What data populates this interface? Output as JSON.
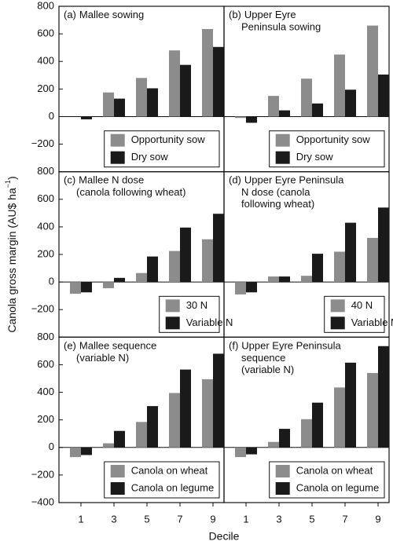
{
  "y_label": [
    "Canola gross margin (AU$ ha",
    "−1",
    ")"
  ],
  "x_label": "Decile",
  "x_categories": [
    "1",
    "3",
    "5",
    "7",
    "9"
  ],
  "chart_data": [
    {
      "type": "bar",
      "panel": "(a)",
      "title": [
        "Mallee sowing"
      ],
      "ylim": [
        -400,
        800
      ],
      "yticks": [
        {
          "value": -200,
          "label": "−200"
        },
        0,
        200,
        400,
        600,
        800
      ],
      "legend": "lower right",
      "series": [
        {
          "name": "Opportunity sow",
          "color": "#8c8c8c",
          "values": [
            0,
            175,
            280,
            480,
            635
          ]
        },
        {
          "name": "Dry sow",
          "color": "#1a1a1a",
          "values": [
            -20,
            130,
            205,
            375,
            505
          ]
        }
      ]
    },
    {
      "type": "bar",
      "panel": "(b)",
      "title": [
        "Upper Eyre",
        "Peninsula sowing"
      ],
      "ylim": [
        -400,
        800
      ],
      "legend": "lower right",
      "series": [
        {
          "name": "Opportunity sow",
          "color": "#8c8c8c",
          "values": [
            -10,
            150,
            275,
            450,
            660
          ]
        },
        {
          "name": "Dry sow",
          "color": "#1a1a1a",
          "values": [
            -45,
            45,
            95,
            195,
            305
          ]
        }
      ]
    },
    {
      "type": "bar",
      "panel": "(c)",
      "title": [
        "Mallee N dose",
        "(canola following wheat)"
      ],
      "ylim": [
        -400,
        800
      ],
      "yticks": [
        {
          "value": -200,
          "label": "−200"
        },
        0,
        200,
        400,
        600,
        800
      ],
      "legend": "lower right",
      "series": [
        {
          "name": "30 N",
          "color": "#8c8c8c",
          "values": [
            -85,
            -45,
            65,
            225,
            310
          ]
        },
        {
          "name": "Variable N",
          "color": "#1a1a1a",
          "values": [
            -75,
            30,
            185,
            395,
            495
          ]
        }
      ]
    },
    {
      "type": "bar",
      "panel": "(d)",
      "title": [
        "Upper Eyre Peninsula",
        "N dose (canola",
        "following wheat)"
      ],
      "ylim": [
        -400,
        800
      ],
      "legend": "lower right",
      "series": [
        {
          "name": "40 N",
          "color": "#8c8c8c",
          "values": [
            -90,
            40,
            45,
            220,
            320
          ]
        },
        {
          "name": "Variable N",
          "color": "#1a1a1a",
          "values": [
            -75,
            40,
            205,
            430,
            540
          ]
        }
      ]
    },
    {
      "type": "bar",
      "panel": "(e)",
      "title": [
        "Mallee sequence",
        "(variable N)"
      ],
      "ylim": [
        -400,
        800
      ],
      "yticks": [
        {
          "value": -400,
          "label": "−400"
        },
        {
          "value": -200,
          "label": "−200"
        },
        0,
        200,
        400,
        600,
        800
      ],
      "legend": "lower right",
      "series": [
        {
          "name": "Canola on wheat",
          "color": "#8c8c8c",
          "values": [
            -70,
            30,
            185,
            395,
            495
          ]
        },
        {
          "name": "Canola on legume",
          "color": "#1a1a1a",
          "values": [
            -55,
            120,
            300,
            565,
            680
          ]
        }
      ]
    },
    {
      "type": "bar",
      "panel": "(f)",
      "title": [
        "Upper Eyre Peninsula",
        "sequence",
        "(variable N)"
      ],
      "ylim": [
        -400,
        800
      ],
      "legend": "lower right",
      "series": [
        {
          "name": "Canola on wheat",
          "color": "#8c8c8c",
          "values": [
            -70,
            40,
            205,
            435,
            540
          ]
        },
        {
          "name": "Canola on legume",
          "color": "#1a1a1a",
          "values": [
            -50,
            135,
            325,
            615,
            735
          ]
        }
      ]
    }
  ]
}
